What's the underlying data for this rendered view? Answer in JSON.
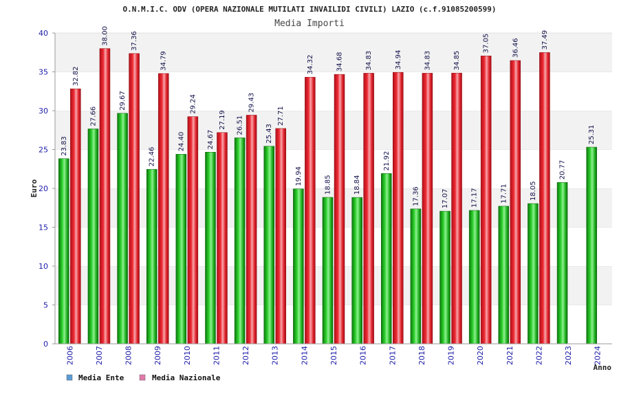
{
  "chart_data": {
    "type": "bar",
    "title": "O.N.M.I.C. ODV (OPERA NAZIONALE MUTILATI INVAILIDI CIVILI) LAZIO (c.f.91085200599)",
    "subtitle": "Media Importi",
    "ylabel": "Euro",
    "xlabel": "Anno",
    "ylim": [
      0,
      40
    ],
    "yticks": [
      "0",
      "5",
      "10",
      "15",
      "20",
      "25",
      "30",
      "35",
      "40"
    ],
    "grid": "horizontal-bands",
    "legend_position": "bottom-left",
    "categories": [
      "2006",
      "2007",
      "2008",
      "2009",
      "2010",
      "2011",
      "2012",
      "2013",
      "2014",
      "2015",
      "2016",
      "2017",
      "2018",
      "2019",
      "2020",
      "2021",
      "2022",
      "2023",
      "2024"
    ],
    "series": [
      {
        "name": "Media Ente",
        "legend_color": "#5b9bd5",
        "bar_color": "#1fb51f",
        "values": [
          23.83,
          27.66,
          29.67,
          22.46,
          24.4,
          24.67,
          26.51,
          25.43,
          19.94,
          18.85,
          18.84,
          21.92,
          17.36,
          17.07,
          17.17,
          17.71,
          18.05,
          20.77,
          25.31
        ],
        "labels": [
          "23.83",
          "27.66",
          "29.67",
          "22.46",
          "24.40",
          "24.67",
          "26.51",
          "25.43",
          "19.94",
          "18.85",
          "18.84",
          "21.92",
          "17.36",
          "17.07",
          "17.17",
          "17.71",
          "18.05",
          "20.77",
          "25.31"
        ]
      },
      {
        "name": "Media Nazionale",
        "legend_color": "#e07aa8",
        "bar_color": "#e8202a",
        "values": [
          32.82,
          38.0,
          37.36,
          34.79,
          29.24,
          27.19,
          29.43,
          27.71,
          34.32,
          34.68,
          34.83,
          34.94,
          34.83,
          34.85,
          37.05,
          36.46,
          37.49,
          null,
          null
        ],
        "labels": [
          "32.82",
          "38.00",
          "37.36",
          "34.79",
          "29.24",
          "27.19",
          "29.43",
          "27.71",
          "34.32",
          "34.68",
          "34.83",
          "34.94",
          "34.83",
          "34.85",
          "37.05",
          "36.46",
          "37.49",
          "",
          ""
        ]
      }
    ]
  }
}
